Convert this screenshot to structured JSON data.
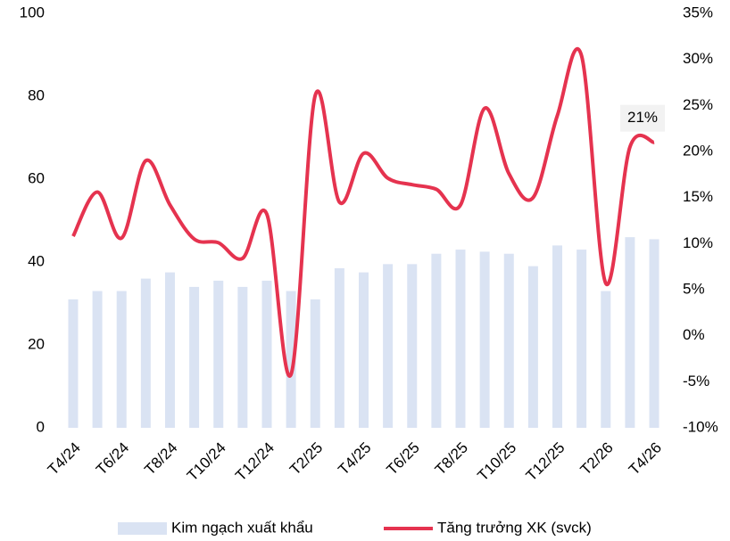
{
  "chart_data": {
    "type": "bar+line",
    "categories": [
      "T4/24",
      null,
      "T6/24",
      null,
      "T8/24",
      null,
      "T10/24",
      null,
      "T12/24",
      null,
      "T2/25",
      null,
      "T4/25",
      null,
      "T6/25",
      null,
      "T8/25",
      null,
      "T10/25",
      null,
      "T12/25",
      null,
      "T2/26",
      null,
      "T4/26"
    ],
    "series": [
      {
        "name": "Kim ngạch xuất khẩu",
        "color": "#dae3f3",
        "type": "bar",
        "values": [
          31,
          33,
          33,
          36,
          37.5,
          34,
          35.5,
          34,
          35.5,
          33,
          31,
          38.5,
          37.5,
          39.5,
          39.5,
          42,
          43,
          42.5,
          42,
          39,
          44,
          43,
          33,
          46,
          45.5
        ]
      },
      {
        "name": "Tăng trưởng XK (svck)",
        "color": "#e5334f",
        "type": "line",
        "axis": "y2",
        "values": [
          10.8,
          15.6,
          10.6,
          19.0,
          14.2,
          10.5,
          10.1,
          8.4,
          13.2,
          -4.2,
          26.1,
          14.5,
          19.8,
          17.1,
          16.4,
          15.9,
          14.2,
          24.7,
          17.6,
          15.0,
          23.9,
          30.4,
          5.7,
          20.5,
          21
        ],
        "value_labels": [
          null,
          null,
          null,
          null,
          null,
          null,
          null,
          null,
          null,
          null,
          null,
          null,
          null,
          null,
          null,
          null,
          null,
          null,
          null,
          null,
          null,
          null,
          null,
          null,
          "21%"
        ]
      }
    ],
    "ylim": [
      0,
      100
    ],
    "yticks": [
      0,
      20,
      40,
      60,
      80,
      100
    ],
    "y2lim": [
      -10,
      35
    ],
    "y2ticks": [
      {
        "value": -10,
        "label": "-10%"
      },
      {
        "value": -5,
        "label": "-5%"
      },
      {
        "value": 0,
        "label": "0%"
      },
      {
        "value": 5,
        "label": "5%"
      },
      {
        "value": 10,
        "label": "10%"
      },
      {
        "value": 15,
        "label": "15%"
      },
      {
        "value": 20,
        "label": "20%"
      },
      {
        "value": 25,
        "label": "25%"
      },
      {
        "value": 30,
        "label": "30%"
      },
      {
        "value": 35,
        "label": "35%"
      }
    ],
    "legend": "bottom",
    "grid": false
  }
}
